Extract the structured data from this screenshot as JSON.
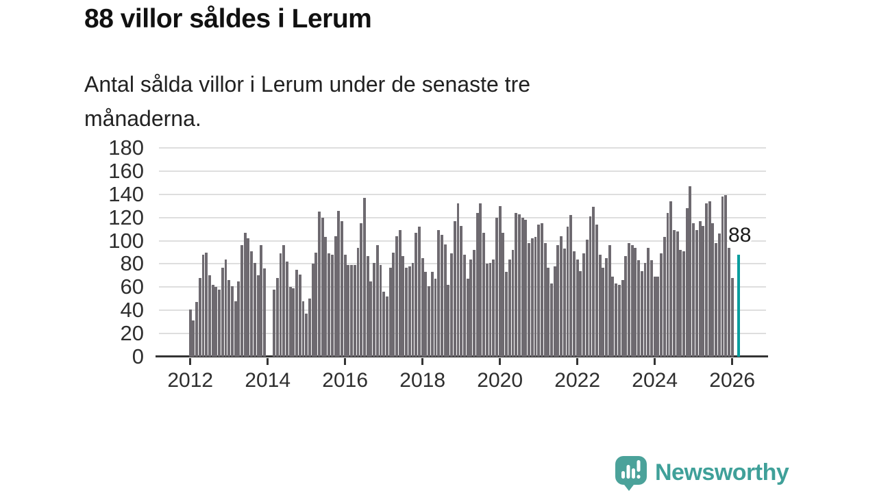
{
  "title": "88 villor såldes i Lerum",
  "subtitle": {
    "line1": "Antal sålda villor i Lerum under de senaste tre",
    "line2": "månaderna."
  },
  "annotation_label": "88",
  "brand": {
    "name": "Newsworthy",
    "color": "#3fa099"
  },
  "colors": {
    "bar": "#6e6a70",
    "highlight": "#0a9d9e",
    "gridline": "#dedede",
    "axis": "#333333"
  },
  "chart_data": {
    "type": "bar",
    "title": "88 villor såldes i Lerum",
    "xlabel": "",
    "ylabel": "",
    "x_start": "2012-01",
    "x_frequency": "monthly",
    "x_tick_labels": [
      "2012",
      "2014",
      "2016",
      "2018",
      "2020",
      "2022",
      "2024",
      "2026"
    ],
    "y_ticks": [
      0,
      20,
      40,
      60,
      80,
      100,
      120,
      140,
      160,
      180
    ],
    "ylim": [
      0,
      180
    ],
    "grid": true,
    "legend": false,
    "highlight_last_value": 88,
    "values": [
      41,
      31,
      47,
      68,
      88,
      90,
      70,
      62,
      60,
      58,
      77,
      84,
      66,
      61,
      48,
      65,
      96,
      107,
      102,
      91,
      81,
      70,
      96,
      76,
      null,
      null,
      58,
      68,
      89,
      96,
      82,
      60,
      59,
      75,
      71,
      48,
      37,
      50,
      80,
      90,
      125,
      120,
      103,
      89,
      88,
      104,
      126,
      117,
      88,
      79,
      79,
      79,
      94,
      115,
      137,
      87,
      65,
      81,
      96,
      79,
      56,
      52,
      77,
      90,
      104,
      109,
      87,
      77,
      78,
      81,
      107,
      112,
      85,
      73,
      61,
      73,
      67,
      109,
      105,
      97,
      62,
      89,
      117,
      132,
      113,
      88,
      67,
      84,
      92,
      124,
      132,
      107,
      80,
      81,
      84,
      120,
      130,
      107,
      73,
      84,
      92,
      124,
      123,
      120,
      118,
      98,
      102,
      103,
      114,
      115,
      98,
      77,
      63,
      78,
      96,
      104,
      93,
      112,
      122,
      91,
      84,
      74,
      89,
      101,
      121,
      129,
      114,
      88,
      77,
      85,
      96,
      69,
      63,
      62,
      66,
      87,
      98,
      96,
      94,
      83,
      74,
      81,
      94,
      83,
      69,
      69,
      89,
      103,
      124,
      134,
      109,
      108,
      92,
      91,
      128,
      147,
      115,
      109,
      117,
      113,
      132,
      134,
      115,
      98,
      106,
      138,
      139,
      94,
      68,
      null,
      88
    ]
  }
}
